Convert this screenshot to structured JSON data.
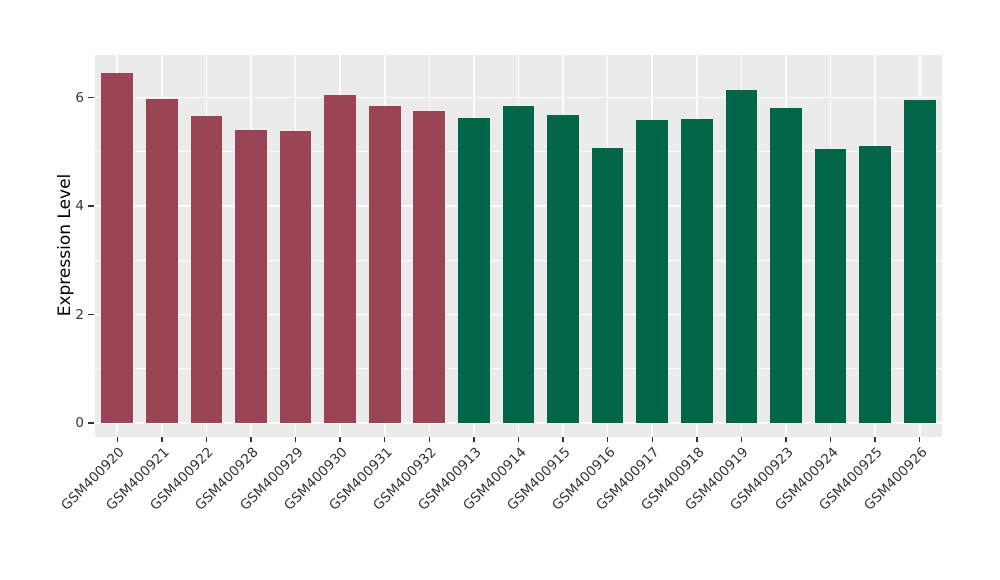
{
  "figure": {
    "background_color": "#FFFFFF"
  },
  "chart_data": {
    "type": "bar",
    "title": "",
    "xlabel": "",
    "ylabel": "Expression Level",
    "categories": [
      "GSM400920",
      "GSM400921",
      "GSM400922",
      "GSM400928",
      "GSM400929",
      "GSM400930",
      "GSM400931",
      "GSM400932",
      "GSM400913",
      "GSM400914",
      "GSM400915",
      "GSM400916",
      "GSM400917",
      "GSM400918",
      "GSM400919",
      "GSM400923",
      "GSM400924",
      "GSM400925",
      "GSM400926"
    ],
    "values": [
      6.45,
      5.97,
      5.65,
      5.41,
      5.39,
      6.05,
      5.84,
      5.76,
      5.63,
      5.85,
      5.68,
      5.07,
      5.58,
      5.6,
      6.13,
      5.81,
      5.05,
      5.1,
      5.95
    ],
    "groups": [
      "g1",
      "g1",
      "g1",
      "g1",
      "g1",
      "g1",
      "g1",
      "g1",
      "g2",
      "g2",
      "g2",
      "g2",
      "g2",
      "g2",
      "g2",
      "g2",
      "g2",
      "g2",
      "g2"
    ],
    "group_colors": {
      "g1": "#9B4455",
      "g2": "#006647"
    },
    "ylim": [
      0,
      6.78
    ],
    "y_major_ticks": [
      0,
      2,
      4,
      6
    ],
    "y_minor_ticks": [
      1,
      3,
      5
    ],
    "x_label_rotation_deg": 45,
    "grid": true,
    "legend_position": "none",
    "panel_background_color": "#EBEBEB",
    "grid_color": "#FFFFFF",
    "axis_text_color": "#333333",
    "axis_title_color": "#000000"
  }
}
